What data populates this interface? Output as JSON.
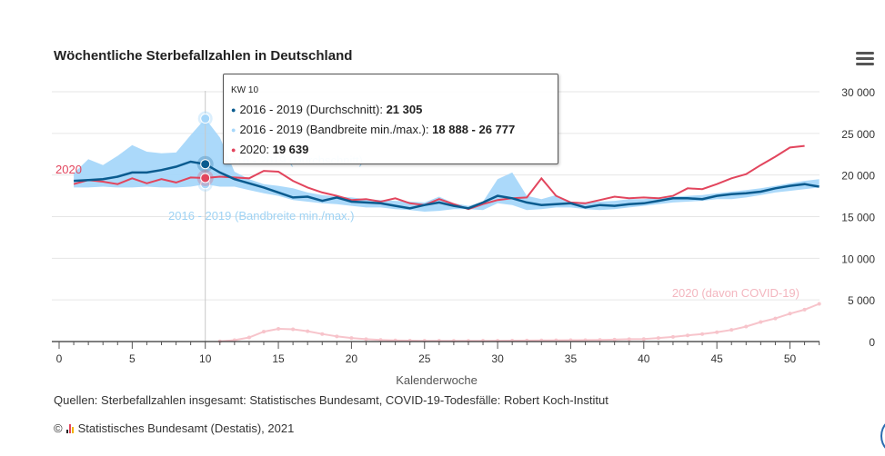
{
  "title": "Wöchentliche Sterbefallzahlen in Deutschland",
  "menu_icon": "hamburger-menu-icon",
  "source": "Quellen: Sterbefallzahlen insgesamt: Statistisches Bundesamt, COVID-19-Todesfälle: Robert Koch-Institut",
  "copyright": {
    "symbol": "©",
    "logo": "destatis-bars-logo",
    "text": "Statistisches Bundesamt (Destatis), 2021"
  },
  "colors": {
    "mean": "#0a5b8f",
    "band": "#a6d7fa",
    "y2020": "#e2455d",
    "covid": "#f7c4cb",
    "band_label": "#9fd3f4",
    "covid_label": "#f3b6bf"
  },
  "tooltip": {
    "header": "KW 10",
    "rows": [
      {
        "label": "2016 - 2019 (Durchschnitt): ",
        "value": "21 305",
        "color": "#0a5b8f"
      },
      {
        "label": "2016 - 2019 (Bandbreite min./max.): ",
        "value": "18 888 - 26 777",
        "color": "#a6d7fa"
      },
      {
        "label": "2020: ",
        "value": "19 639",
        "color": "#e2455d"
      }
    ]
  },
  "chart_data": {
    "type": "line",
    "xlabel": "Kalenderwoche",
    "ylabel": "",
    "xlim": [
      0,
      52
    ],
    "ylim": [
      0,
      30000
    ],
    "x_ticks": [
      "0",
      "5",
      "10",
      "15",
      "20",
      "25",
      "30",
      "35",
      "40",
      "45",
      "50"
    ],
    "y_ticks": [
      "0",
      "5 000",
      "10 000",
      "15 000",
      "20 000",
      "25 000",
      "30 000"
    ],
    "grid": "horizontal",
    "highlight_week": 10,
    "weeks": [
      1,
      2,
      3,
      4,
      5,
      6,
      7,
      8,
      9,
      10,
      11,
      12,
      13,
      14,
      15,
      16,
      17,
      18,
      19,
      20,
      21,
      22,
      23,
      24,
      25,
      26,
      27,
      28,
      29,
      30,
      31,
      32,
      33,
      34,
      35,
      36,
      37,
      38,
      39,
      40,
      41,
      42,
      43,
      44,
      45,
      46,
      47,
      48,
      49,
      50,
      51,
      52
    ],
    "series": [
      {
        "name": "2016 - 2019 (Bandbreite min./max.)",
        "kind": "band",
        "min": [
          18500,
          18500,
          18600,
          18500,
          18500,
          18600,
          18500,
          18500,
          18600,
          18888,
          18600,
          18600,
          18200,
          17800,
          17500,
          17000,
          16800,
          16600,
          16500,
          16300,
          16100,
          16100,
          15900,
          15800,
          15600,
          15700,
          15900,
          15900,
          15800,
          16600,
          16400,
          15800,
          15900,
          16100,
          16100,
          15900,
          15800,
          15900,
          16100,
          16300,
          16500,
          16700,
          16800,
          16900,
          17100,
          17100,
          17300,
          17600,
          17900,
          18100,
          18300,
          18500
        ],
        "max": [
          20200,
          21900,
          21200,
          22300,
          23600,
          22800,
          22600,
          22700,
          24800,
          26777,
          24500,
          20400,
          19500,
          18900,
          18700,
          18400,
          17900,
          17600,
          17400,
          17300,
          17100,
          17000,
          16900,
          16800,
          16700,
          17400,
          16600,
          16300,
          16800,
          19500,
          20300,
          17500,
          17100,
          17600,
          16800,
          16700,
          16800,
          16900,
          17100,
          17100,
          17300,
          17400,
          17500,
          17600,
          17800,
          18000,
          18200,
          18400,
          18700,
          19000,
          19300,
          19500
        ]
      },
      {
        "name": "2016 - 2019 (Durchschnitt)",
        "kind": "line",
        "values": [
          19300,
          19400,
          19500,
          19800,
          20300,
          20300,
          20600,
          21000,
          21600,
          21305,
          20300,
          19500,
          19000,
          18500,
          17900,
          17300,
          17400,
          16900,
          17300,
          16800,
          16700,
          16600,
          16300,
          16000,
          16400,
          16700,
          16300,
          16000,
          16700,
          17500,
          17200,
          16700,
          16400,
          16500,
          16600,
          16100,
          16400,
          16300,
          16500,
          16600,
          16900,
          17200,
          17200,
          17100,
          17500,
          17700,
          17800,
          18000,
          18400,
          18700,
          18900,
          18600
        ]
      },
      {
        "name": "2020",
        "kind": "line",
        "values": [
          18900,
          19400,
          19200,
          18900,
          19600,
          19000,
          19500,
          19100,
          19700,
          19639,
          19800,
          19700,
          19600,
          20500,
          20400,
          19300,
          18500,
          17900,
          17500,
          17000,
          17100,
          16800,
          17200,
          16600,
          16400,
          17100,
          16500,
          15900,
          16500,
          17000,
          17200,
          17300,
          19600,
          17500,
          16700,
          16600,
          17000,
          17400,
          17200,
          17300,
          17200,
          17500,
          18400,
          18300,
          18900,
          19600,
          20100,
          21200,
          22200,
          23300,
          23500,
          null
        ]
      },
      {
        "name": "2020 (davon COVID-19)",
        "kind": "line",
        "values": [
          null,
          null,
          null,
          null,
          null,
          null,
          null,
          null,
          null,
          null,
          30,
          160,
          490,
          1190,
          1530,
          1470,
          1240,
          900,
          620,
          420,
          280,
          190,
          140,
          110,
          90,
          90,
          80,
          80,
          90,
          100,
          110,
          120,
          130,
          150,
          160,
          170,
          190,
          230,
          280,
          300,
          420,
          560,
          740,
          900,
          1120,
          1400,
          1800,
          2350,
          2770,
          3350,
          3830,
          4530
        ]
      }
    ],
    "annotations": [
      {
        "text": "2020",
        "series": "2020"
      },
      {
        "text": "2016 - 2019 (Durchschnitt)",
        "series": "2016 - 2019 (Durchschnitt)"
      },
      {
        "text": "2016 - 2019 (Bandbreite min./max.)",
        "series": "2016 - 2019 (Bandbreite min./max.)"
      },
      {
        "text": "2020 (davon COVID-19)",
        "series": "2020 (davon COVID-19)"
      }
    ]
  }
}
